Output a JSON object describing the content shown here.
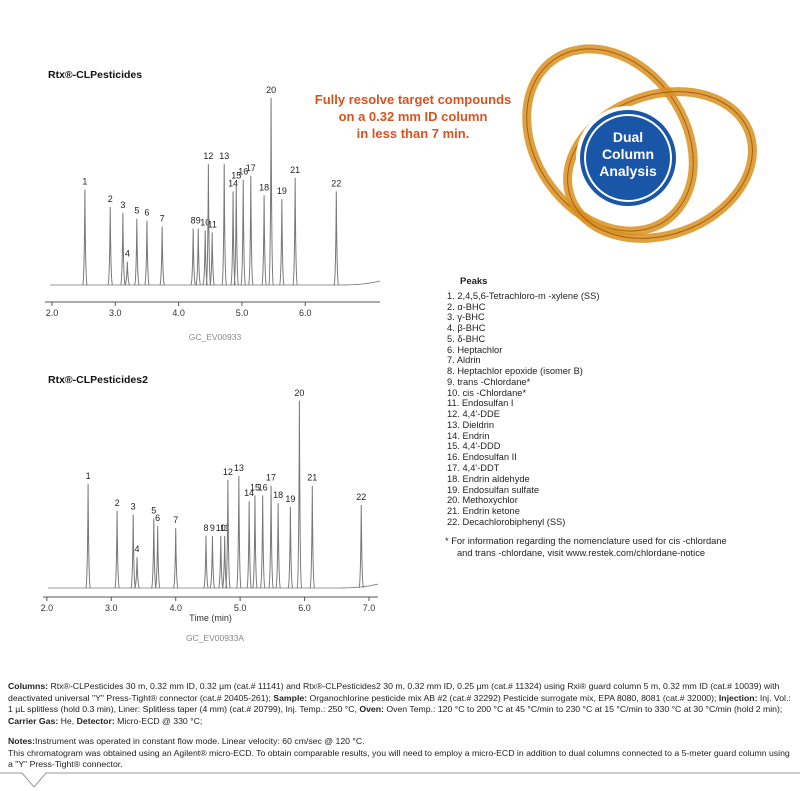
{
  "headline": [
    "Fully resolve target compounds",
    "on a 0.32 mm ID column",
    "in less than 7 min."
  ],
  "badge": [
    "Dual",
    "Column",
    "Analysis"
  ],
  "chart_data": [
    {
      "type": "chromatogram",
      "title": "Rtx®-CLPesticides",
      "code": "GC_EV00933",
      "color": "#777777",
      "peak_labels": [
        "1",
        "2",
        "3",
        "4",
        "5",
        "6",
        "7",
        "8",
        "9",
        "10",
        "11",
        "12",
        "13",
        "14",
        "15",
        "16",
        "17",
        "18",
        "19",
        "20",
        "21",
        "22"
      ],
      "x": [
        2.52,
        2.92,
        3.12,
        3.19,
        3.34,
        3.5,
        3.74,
        4.23,
        4.31,
        4.42,
        4.53,
        4.47,
        4.72,
        4.86,
        4.91,
        5.02,
        5.14,
        5.35,
        5.63,
        5.46,
        5.84,
        6.49
      ],
      "values": [
        49,
        40,
        37,
        12,
        34,
        33,
        30,
        29,
        29,
        28,
        27,
        62,
        62,
        48,
        52,
        54,
        56,
        46,
        44,
        96,
        55,
        48
      ],
      "xlim": [
        1.89,
        7.18
      ],
      "xticks": [
        {
          "value": 2,
          "label": "2.0"
        },
        {
          "value": 3,
          "label": "3.0"
        },
        {
          "value": 4,
          "label": "4.0"
        },
        {
          "value": 5,
          "label": "5.0"
        },
        {
          "value": 6,
          "label": "6.0"
        }
      ],
      "ylim": [
        0,
        100
      ]
    },
    {
      "type": "chromatogram",
      "title": "Rtx®-CLPesticides2",
      "code": "GC_EV00933A",
      "color": "#777777",
      "xlabel": "Time (min)",
      "peak_labels": [
        "1",
        "2",
        "3",
        "4",
        "5",
        "6",
        "7",
        "8",
        "9",
        "10",
        "11",
        "12",
        "13",
        "14",
        "15",
        "16",
        "17",
        "18",
        "19",
        "20",
        "21",
        "22"
      ],
      "x": [
        2.64,
        3.09,
        3.34,
        3.4,
        3.66,
        3.72,
        4.0,
        4.47,
        4.57,
        4.7,
        4.76,
        4.81,
        4.98,
        5.14,
        5.23,
        5.35,
        5.48,
        5.59,
        5.78,
        5.92,
        6.12,
        6.88
      ],
      "values": [
        54,
        40,
        38,
        16,
        36,
        32,
        31,
        27,
        27,
        27,
        27,
        56,
        58,
        45,
        48,
        48,
        53,
        44,
        42,
        97,
        53,
        43
      ],
      "xlim": [
        1.94,
        7.14
      ],
      "xticks": [
        {
          "value": 2,
          "label": "2.0"
        },
        {
          "value": 3,
          "label": "3.0"
        },
        {
          "value": 4,
          "label": "4.0"
        },
        {
          "value": 5,
          "label": "5.0"
        },
        {
          "value": 6,
          "label": "6.0"
        },
        {
          "value": 7,
          "label": "7.0"
        }
      ],
      "ylim": [
        0,
        100
      ]
    }
  ],
  "peaks": {
    "title": "Peaks",
    "items": [
      "1. 2,4,5,6-Tetrachloro-m -xylene (SS)",
      "2. α-BHC",
      "3. γ-BHC",
      "4. β-BHC",
      "5. δ-BHC",
      "6. Heptachlor",
      "7. Aldrin",
      "8. Heptachlor epoxide (isomer B)",
      "9. trans -Chlordane*",
      "10. cis -Chlordane*",
      "11. Endosulfan I",
      "12. 4,4'-DDE",
      "13. Dieldrin",
      "14. Endrin",
      "15. 4,4'-DDD",
      "16. Endosulfan II",
      "17. 4,4'-DDT",
      "18. Endrin aldehyde",
      "19. Endosulfan sulfate",
      "20. Methoxychlor",
      "21. Endrin ketone",
      "22. Decachlorobiphenyl (SS)"
    ]
  },
  "footnote": [
    "* For information regarding the nomenclature used for cis -chlordane",
    "and trans -chlordane, visit www.restek.com/chlordane-notice"
  ],
  "conditions": [
    {
      "label": "Columns:",
      "text": " Rtx®-CLPesticides 30 m, 0.32 mm ID, 0.32 µm (cat.# 11141) and Rtx®-CLPesticides2 30 m, 0.32 mm ID, 0.25 µm (cat.# 11324) using Rxi® guard column 5 m, 0.32 mm ID (cat.# 10039) with deactivated universal \"Y\" Press-Tight® connector (cat.# 20405-261); "
    },
    {
      "label": "Sample:",
      "text": "  Organochlorine pesticide mix AB #2 (cat.# 32292) Pesticide surrogate mix, EPA 8080, 8081 (cat.# 32000); "
    },
    {
      "label": "Injection:",
      "text": " Inj. Vol.: 1 µL splitless (hold 0.3 min), Liner: Splitless taper (4 mm) (cat.# 20799), Inj. Temp.: 250 °C, "
    },
    {
      "label": "Oven:",
      "text": " Oven Temp.: 120 °C to 200 °C at 45 °C/min to 230 °C at 15 °C/min to 330 °C at 30 °C/min (hold 2 min); "
    },
    {
      "label": "Carrier Gas:",
      "text": " He, "
    },
    {
      "label": "Detector:",
      "text": " Micro-ECD @ 330 °C;"
    }
  ],
  "notes": {
    "label": "Notes:",
    "text": "Instrument was operated in constant flow mode. Linear velocity: 60 cm/sec @ 120 °C.",
    "disclaimer": "This chromatogram was obtained using an Agilent® micro-ECD. To obtain comparable results, you will need to employ a micro-ECD in addition to dual columns connected to a 5-meter guard column using a \"Y\" Press-Tight® connector."
  }
}
